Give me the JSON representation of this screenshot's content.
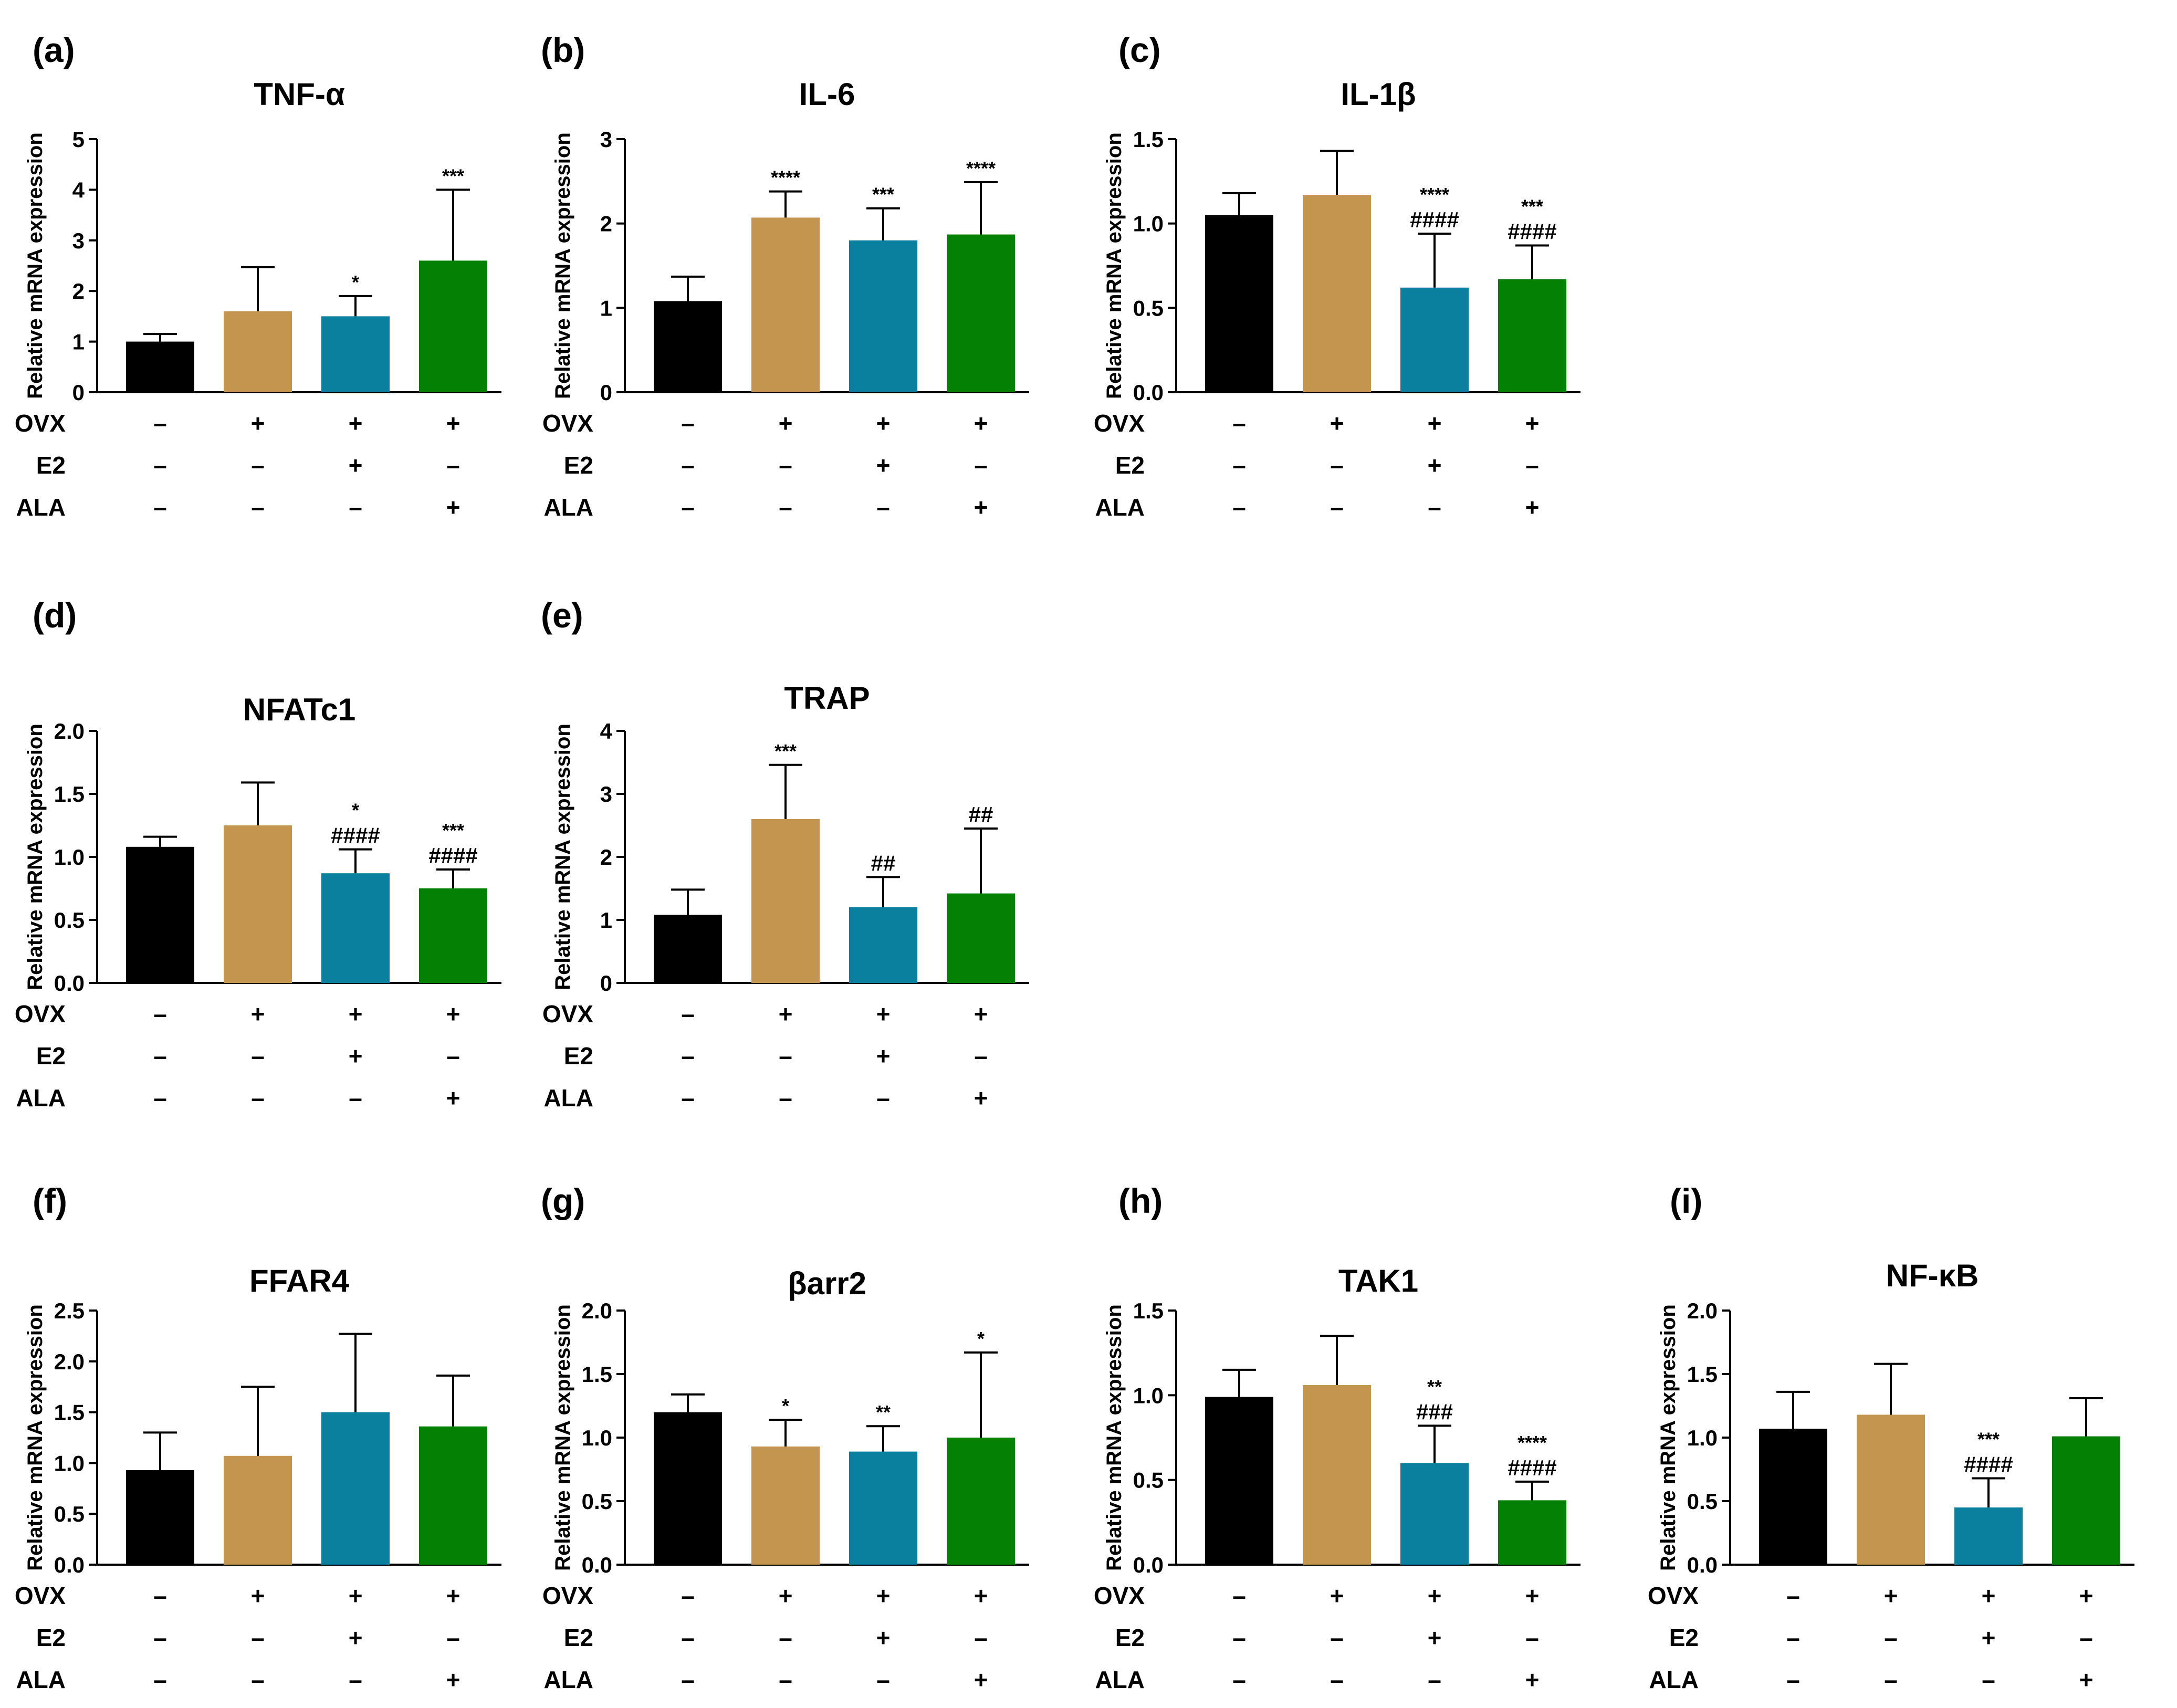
{
  "chart_data": [
    {
      "type": "bar",
      "panel": "(a)",
      "title": "TNF-α",
      "ylabel": "Relative mRNA expression",
      "ylim": [
        0,
        5
      ],
      "yticks": [
        "0",
        "1",
        "2",
        "3",
        "4",
        "5"
      ],
      "values": [
        1.0,
        1.6,
        1.5,
        2.6
      ],
      "errors": [
        0.15,
        0.87,
        0.4,
        1.4
      ],
      "annotations": [
        [
          "",
          ""
        ],
        [
          "",
          ""
        ],
        [
          "*",
          ""
        ],
        [
          "***",
          ""
        ]
      ],
      "factors": [
        {
          "label": "OVX",
          "signs": [
            "–",
            "+",
            "+",
            "+"
          ]
        },
        {
          "label": "E2",
          "signs": [
            "–",
            "–",
            "+",
            "–"
          ]
        },
        {
          "label": "ALA",
          "signs": [
            "–",
            "–",
            "–",
            "+"
          ]
        }
      ]
    },
    {
      "type": "bar",
      "panel": "(b)",
      "title": "IL-6",
      "ylabel": "Relative mRNA expression",
      "ylim": [
        0,
        3
      ],
      "yticks": [
        "0",
        "1",
        "2",
        "3"
      ],
      "values": [
        1.08,
        2.07,
        1.8,
        1.87
      ],
      "errors": [
        0.29,
        0.31,
        0.38,
        0.62
      ],
      "annotations": [
        [
          "",
          ""
        ],
        [
          "****",
          ""
        ],
        [
          "***",
          ""
        ],
        [
          "****",
          ""
        ]
      ],
      "factors": [
        {
          "label": "OVX",
          "signs": [
            "–",
            "+",
            "+",
            "+"
          ]
        },
        {
          "label": "E2",
          "signs": [
            "–",
            "–",
            "+",
            "–"
          ]
        },
        {
          "label": "ALA",
          "signs": [
            "–",
            "–",
            "–",
            "+"
          ]
        }
      ]
    },
    {
      "type": "bar",
      "panel": "(c)",
      "title": "IL-1β",
      "ylabel": "Relative mRNA expression",
      "ylim": [
        0,
        1.5
      ],
      "yticks": [
        "0.0",
        "0.5",
        "1.0",
        "1.5"
      ],
      "values": [
        1.05,
        1.17,
        0.62,
        0.67
      ],
      "errors": [
        0.13,
        0.26,
        0.32,
        0.2
      ],
      "annotations": [
        [
          "",
          ""
        ],
        [
          "",
          ""
        ],
        [
          "****",
          "####"
        ],
        [
          "***",
          "####"
        ]
      ],
      "factors": [
        {
          "label": "OVX",
          "signs": [
            "–",
            "+",
            "+",
            "+"
          ]
        },
        {
          "label": "E2",
          "signs": [
            "–",
            "–",
            "+",
            "–"
          ]
        },
        {
          "label": "ALA",
          "signs": [
            "–",
            "–",
            "–",
            "+"
          ]
        }
      ]
    },
    {
      "type": "bar",
      "panel": "(d)",
      "title": "NFATc1",
      "ylabel": "Relative mRNA expression",
      "ylim": [
        0,
        2.0
      ],
      "yticks": [
        "0.0",
        "0.5",
        "1.0",
        "1.5",
        "2.0"
      ],
      "values": [
        1.08,
        1.25,
        0.87,
        0.75
      ],
      "errors": [
        0.08,
        0.34,
        0.19,
        0.15
      ],
      "annotations": [
        [
          "",
          ""
        ],
        [
          "",
          ""
        ],
        [
          "*",
          "####"
        ],
        [
          "***",
          "####"
        ]
      ],
      "factors": [
        {
          "label": "OVX",
          "signs": [
            "–",
            "+",
            "+",
            "+"
          ]
        },
        {
          "label": "E2",
          "signs": [
            "–",
            "–",
            "+",
            "–"
          ]
        },
        {
          "label": "ALA",
          "signs": [
            "–",
            "–",
            "–",
            "+"
          ]
        }
      ]
    },
    {
      "type": "bar",
      "panel": "(e)",
      "title": "TRAP",
      "ylabel": "Relative mRNA expression",
      "ylim": [
        0,
        4
      ],
      "yticks": [
        "0",
        "1",
        "2",
        "3",
        "4"
      ],
      "values": [
        1.08,
        2.6,
        1.2,
        1.42
      ],
      "errors": [
        0.4,
        0.86,
        0.48,
        1.03
      ],
      "annotations": [
        [
          "",
          ""
        ],
        [
          "***",
          ""
        ],
        [
          "",
          "##"
        ],
        [
          "",
          "##"
        ]
      ],
      "factors": [
        {
          "label": "OVX",
          "signs": [
            "–",
            "+",
            "+",
            "+"
          ]
        },
        {
          "label": "E2",
          "signs": [
            "–",
            "–",
            "+",
            "–"
          ]
        },
        {
          "label": "ALA",
          "signs": [
            "–",
            "–",
            "–",
            "+"
          ]
        }
      ]
    },
    {
      "type": "bar",
      "panel": "(f)",
      "title": "FFAR4",
      "ylabel": "Relative mRNA expression",
      "ylim": [
        0,
        2.5
      ],
      "yticks": [
        "0.0",
        "0.5",
        "1.0",
        "1.5",
        "2.0",
        "2.5"
      ],
      "values": [
        0.93,
        1.07,
        1.5,
        1.36
      ],
      "errors": [
        0.37,
        0.68,
        0.77,
        0.5
      ],
      "annotations": [
        [
          "",
          ""
        ],
        [
          "",
          ""
        ],
        [
          "",
          ""
        ],
        [
          "",
          ""
        ]
      ],
      "factors": [
        {
          "label": "OVX",
          "signs": [
            "–",
            "+",
            "+",
            "+"
          ]
        },
        {
          "label": "E2",
          "signs": [
            "–",
            "–",
            "+",
            "–"
          ]
        },
        {
          "label": "ALA",
          "signs": [
            "–",
            "–",
            "–",
            "+"
          ]
        }
      ]
    },
    {
      "type": "bar",
      "panel": "(g)",
      "title": "βarr2",
      "ylabel": "Relative mRNA expression",
      "ylim": [
        0,
        2.0
      ],
      "yticks": [
        "0.0",
        "0.5",
        "1.0",
        "1.5",
        "2.0"
      ],
      "values": [
        1.2,
        0.93,
        0.89,
        1.0
      ],
      "errors": [
        0.14,
        0.21,
        0.2,
        0.67
      ],
      "annotations": [
        [
          "",
          ""
        ],
        [
          "*",
          ""
        ],
        [
          "**",
          ""
        ],
        [
          "*",
          ""
        ]
      ],
      "factors": [
        {
          "label": "OVX",
          "signs": [
            "–",
            "+",
            "+",
            "+"
          ]
        },
        {
          "label": "E2",
          "signs": [
            "–",
            "–",
            "+",
            "–"
          ]
        },
        {
          "label": "ALA",
          "signs": [
            "–",
            "–",
            "–",
            "+"
          ]
        }
      ]
    },
    {
      "type": "bar",
      "panel": "(h)",
      "title": "TAK1",
      "ylabel": "Relative mRNA expression",
      "ylim": [
        0,
        1.5
      ],
      "yticks": [
        "0.0",
        "0.5",
        "1.0",
        "1.5"
      ],
      "values": [
        0.99,
        1.06,
        0.6,
        0.38
      ],
      "errors": [
        0.16,
        0.29,
        0.22,
        0.11
      ],
      "annotations": [
        [
          "",
          ""
        ],
        [
          "",
          ""
        ],
        [
          "**",
          "###"
        ],
        [
          "****",
          "####"
        ]
      ],
      "factors": [
        {
          "label": "OVX",
          "signs": [
            "–",
            "+",
            "+",
            "+"
          ]
        },
        {
          "label": "E2",
          "signs": [
            "–",
            "–",
            "+",
            "–"
          ]
        },
        {
          "label": "ALA",
          "signs": [
            "–",
            "–",
            "–",
            "+"
          ]
        }
      ]
    },
    {
      "type": "bar",
      "panel": "(i)",
      "title": "NF-κB",
      "ylabel": "Relative mRNA expression",
      "ylim": [
        0,
        2.0
      ],
      "yticks": [
        "0.0",
        "0.5",
        "1.0",
        "1.5",
        "2.0"
      ],
      "values": [
        1.07,
        1.18,
        0.45,
        1.01
      ],
      "errors": [
        0.29,
        0.4,
        0.23,
        0.3
      ],
      "annotations": [
        [
          "",
          ""
        ],
        [
          "",
          ""
        ],
        [
          "***",
          "####"
        ],
        [
          "",
          ""
        ]
      ],
      "factors": [
        {
          "label": "OVX",
          "signs": [
            "–",
            "+",
            "+",
            "+"
          ]
        },
        {
          "label": "E2",
          "signs": [
            "–",
            "–",
            "+",
            "–"
          ]
        },
        {
          "label": "ALA",
          "signs": [
            "–",
            "–",
            "–",
            "+"
          ]
        }
      ]
    }
  ],
  "colors": {
    "bars": [
      "#000000",
      "#c4954e",
      "#0b7f9e",
      "#048004"
    ],
    "axis": "#000000"
  }
}
